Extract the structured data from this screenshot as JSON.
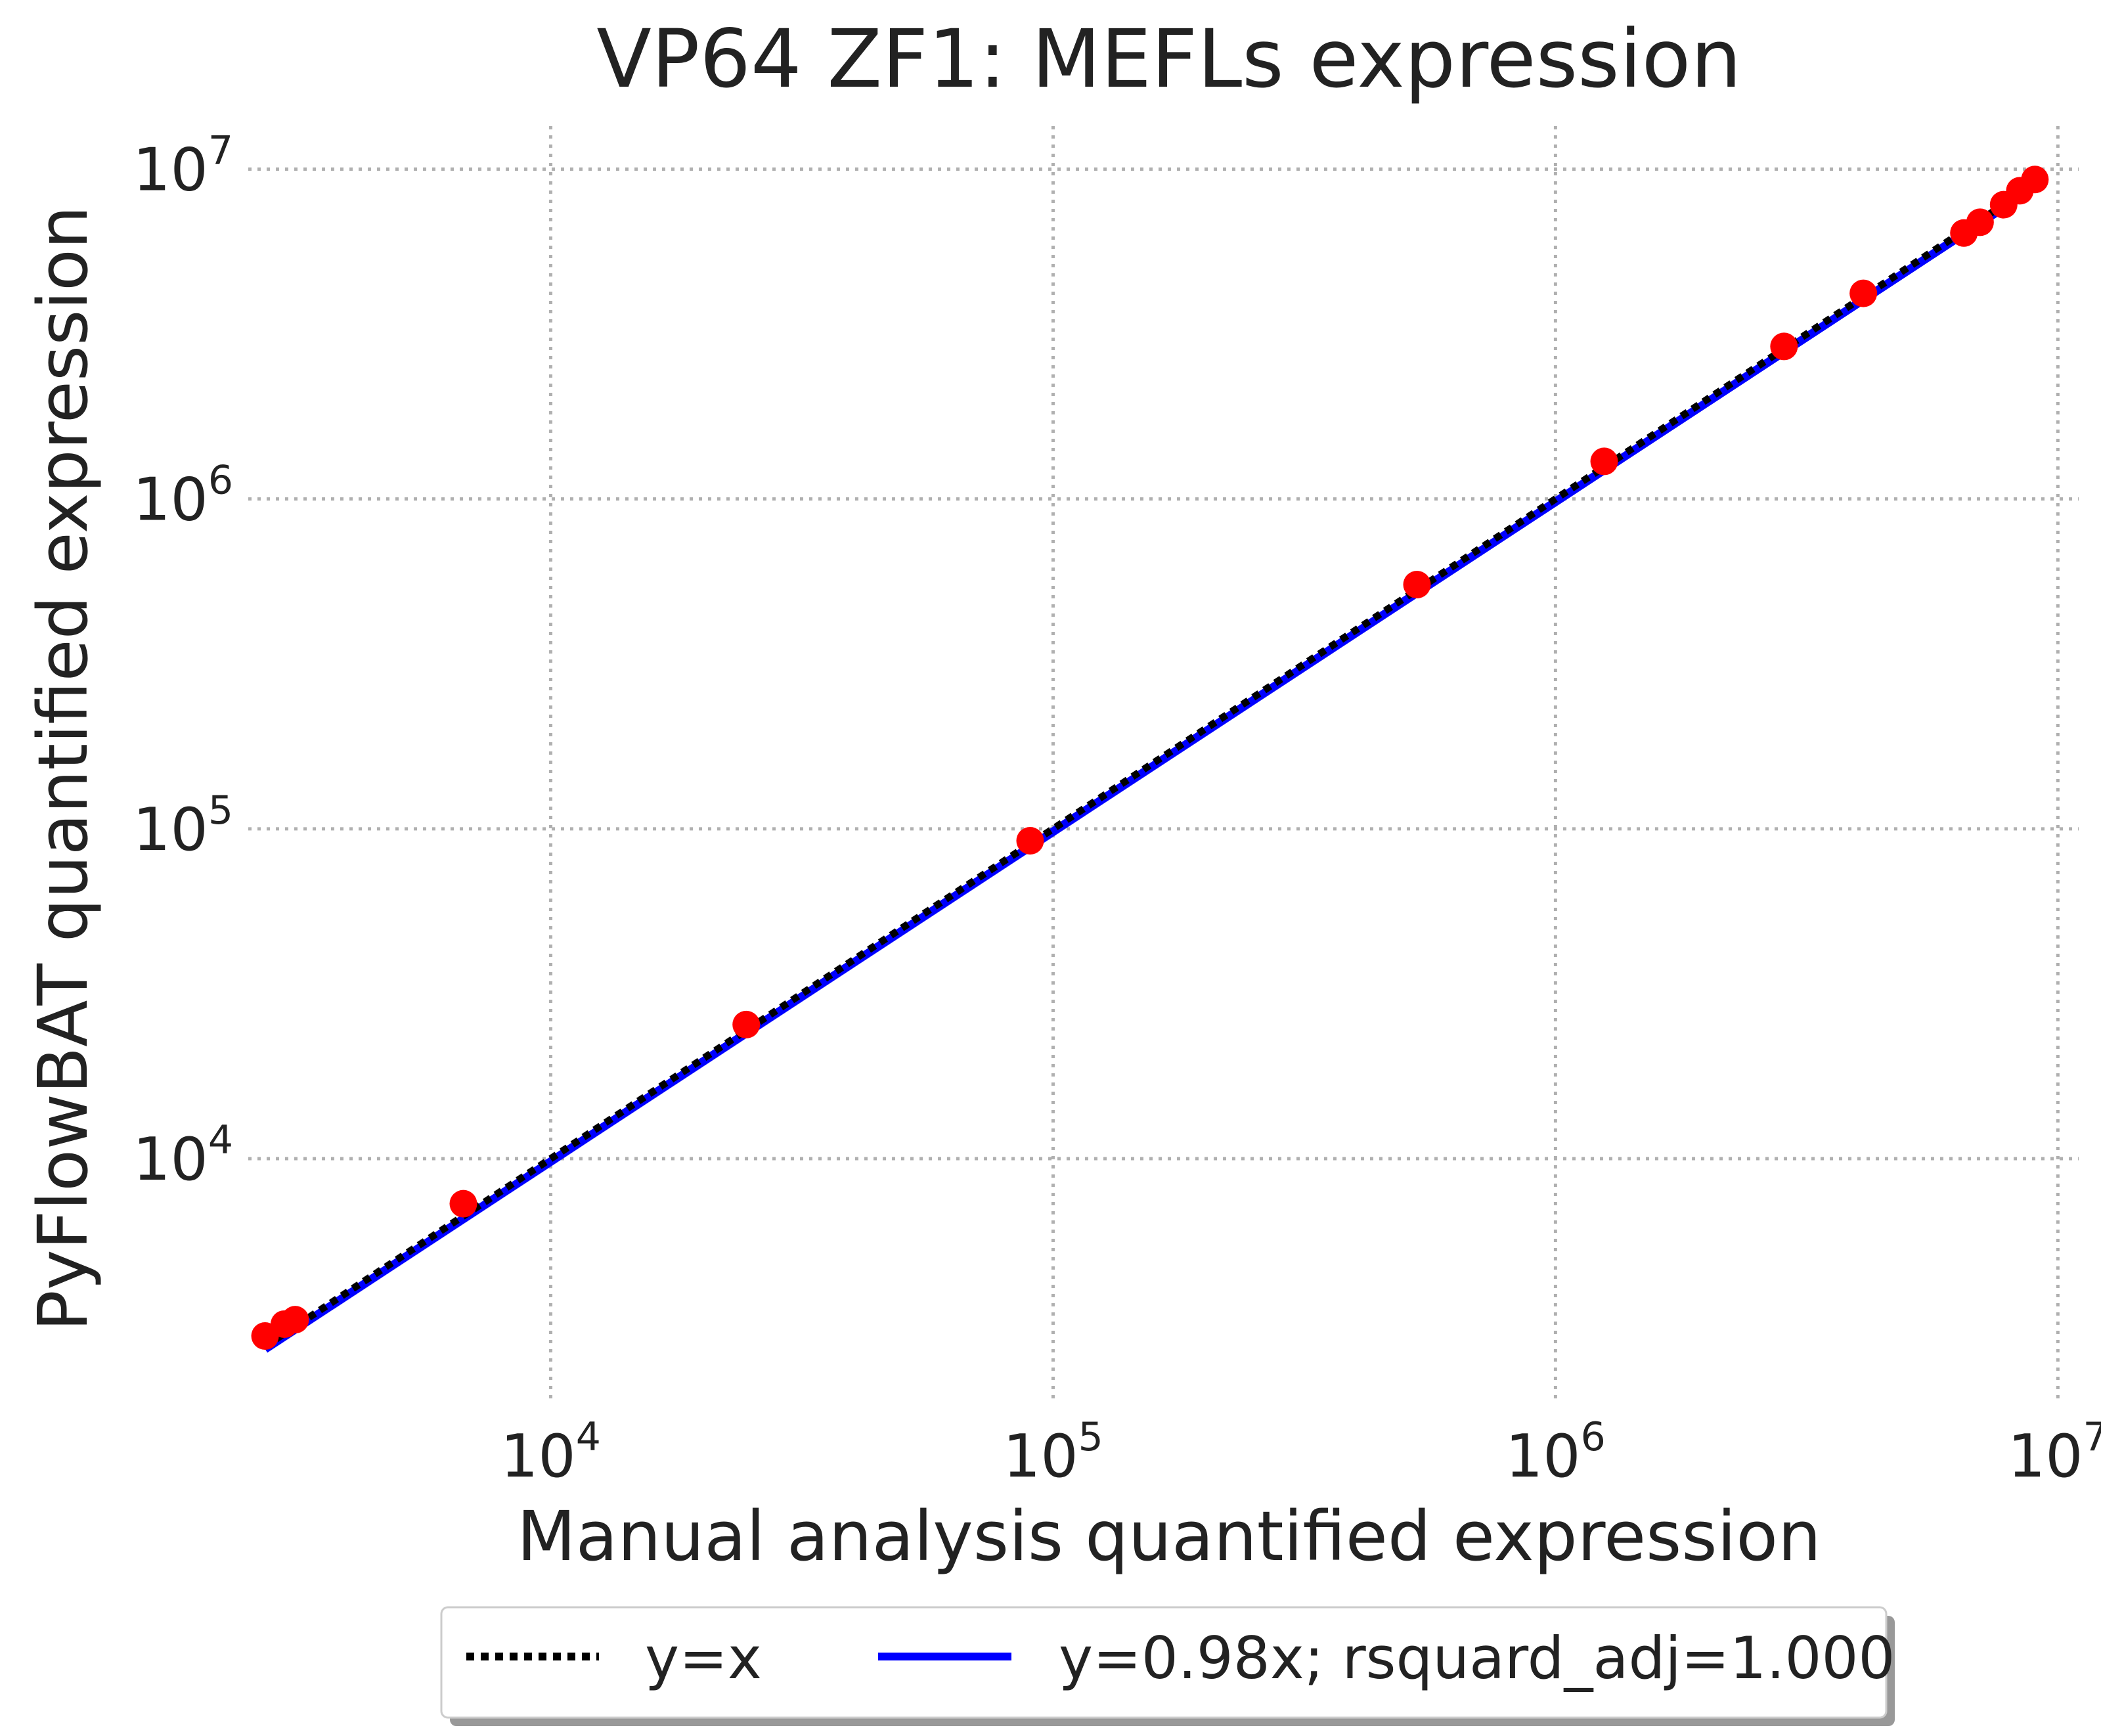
{
  "chart_data": {
    "type": "scatter",
    "title": "VP64 ZF1: MEFLs expression",
    "xlabel": "Manual analysis quantified expression",
    "ylabel": "PyFlowBAT quantified expression",
    "xscale": "log",
    "yscale": "log",
    "xlim": [
      2500,
      11000000
    ],
    "ylim": [
      1800,
      13500000
    ],
    "grid": true,
    "grid_style": "dotted",
    "x_ticks": [
      {
        "value": 10000,
        "base": "10",
        "exp": "4"
      },
      {
        "value": 100000,
        "base": "10",
        "exp": "5"
      },
      {
        "value": 1000000,
        "base": "10",
        "exp": "6"
      },
      {
        "value": 10000000,
        "base": "10",
        "exp": "7"
      }
    ],
    "y_ticks": [
      {
        "value": 10000,
        "base": "10",
        "exp": "4"
      },
      {
        "value": 100000,
        "base": "10",
        "exp": "5"
      },
      {
        "value": 1000000,
        "base": "10",
        "exp": "6"
      },
      {
        "value": 10000000,
        "base": "10",
        "exp": "7"
      }
    ],
    "points": {
      "color": "#ff0000",
      "x": [
        2700,
        2950,
        3100,
        6700,
        24500,
        90000,
        530000,
        1250000,
        2850000,
        4100000,
        6500000,
        7000000,
        7800000,
        8400000,
        9000000
      ],
      "y": [
        2900,
        3150,
        3250,
        7300,
        25500,
        92000,
        550000,
        1300000,
        2900000,
        4200000,
        6400000,
        6900000,
        7800000,
        8600000,
        9300000
      ]
    },
    "lines": [
      {
        "name": "y=x",
        "slope": 1.0,
        "style": "dotted",
        "color": "#000000",
        "x_range": [
          2700,
          9000000
        ]
      },
      {
        "name": "y=0.98x; rsquard_adj=1.000",
        "slope": 0.98,
        "style": "solid",
        "color": "#0000ff",
        "x_range": [
          2700,
          9000000
        ]
      }
    ],
    "legend": {
      "placement": "bottom-center",
      "entries": [
        {
          "label": "y=x",
          "style": "dotted",
          "color": "#000000"
        },
        {
          "label": "y=0.98x; rsquard_adj=1.000",
          "style": "solid",
          "color": "#0000ff"
        }
      ]
    }
  }
}
